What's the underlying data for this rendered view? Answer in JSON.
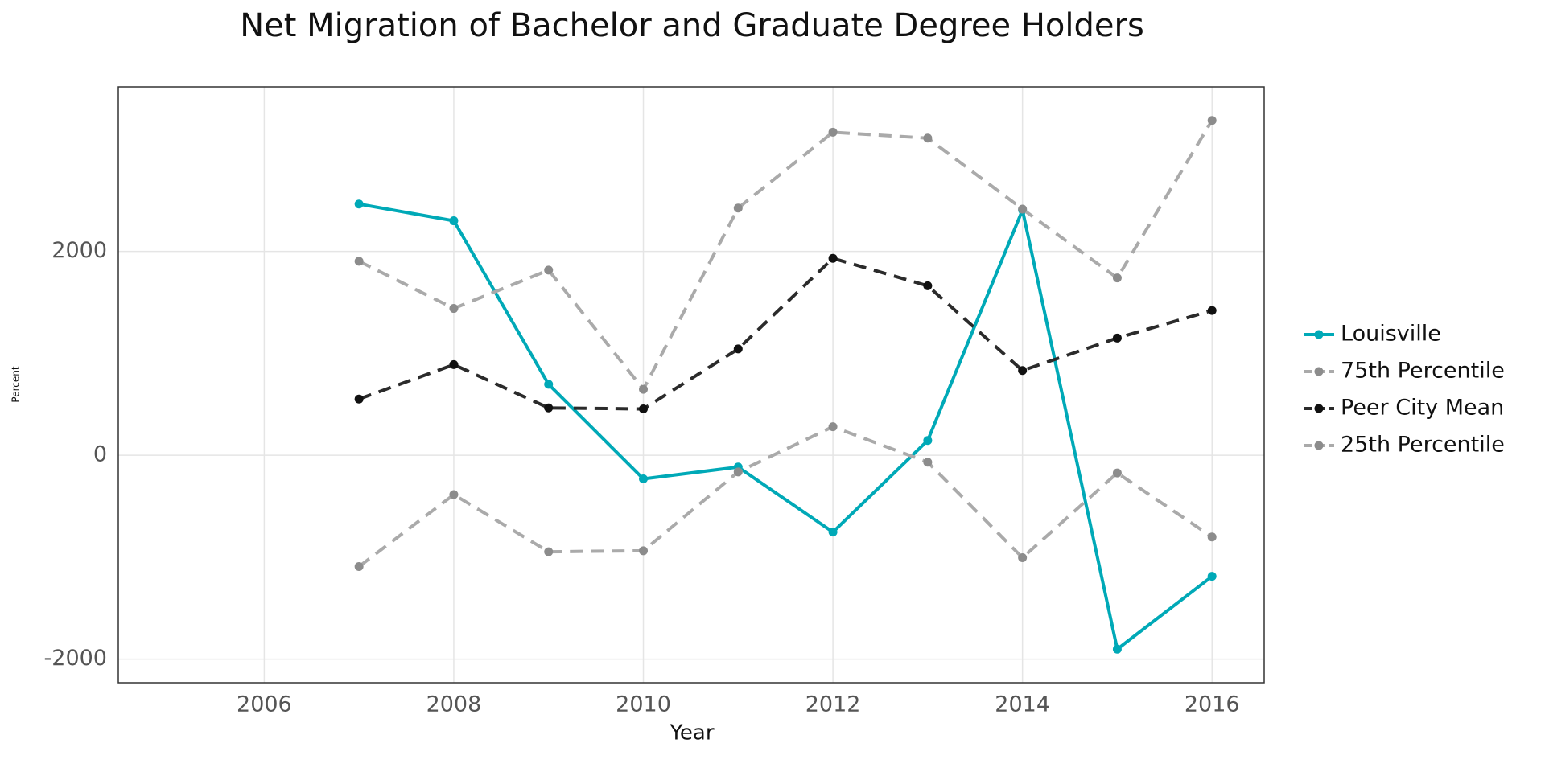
{
  "chart_data": {
    "type": "line",
    "title": "Net Migration of Bachelor and Graduate Degree Holders",
    "x_label": "Year",
    "y_label": "Percent",
    "x": [
      2007,
      2008,
      2009,
      2010,
      2011,
      2012,
      2013,
      2014,
      2015,
      2016
    ],
    "series": [
      {
        "name": "Louisville",
        "color": "#00a9b7",
        "dashed": false,
        "point_color": "#00a9b7",
        "values": [
          2464,
          2300,
          696,
          -232,
          -116,
          -754,
          145,
          2406,
          -1903,
          -1188
        ]
      },
      {
        "name": "75th Percentile",
        "color": "#aaaaaa",
        "dashed": true,
        "point_color": "#8c8c8c",
        "values": [
          1903,
          1440,
          1816,
          647,
          2425,
          3169,
          3111,
          2415,
          1739,
          3285
        ]
      },
      {
        "name": "Peer City Mean",
        "color": "#2b2b2b",
        "dashed": true,
        "point_color": "#111111",
        "values": [
          551,
          889,
          464,
          454,
          1043,
          1932,
          1662,
          831,
          1150,
          1420
        ]
      },
      {
        "name": "25th Percentile",
        "color": "#aaaaaa",
        "dashed": true,
        "point_color": "#8c8c8c",
        "values": [
          -1092,
          -386,
          -947,
          -937,
          -164,
          280,
          -68,
          -1005,
          -174,
          -802
        ]
      }
    ],
    "xlim": [
      2004.46,
      2016.55
    ],
    "xticks": [
      2006,
      2008,
      2010,
      2012,
      2014,
      2016
    ],
    "ylim": [
      -2232,
      3614
    ],
    "yticks": [
      -2000,
      0,
      2000
    ],
    "grid": true,
    "legend": "right"
  }
}
